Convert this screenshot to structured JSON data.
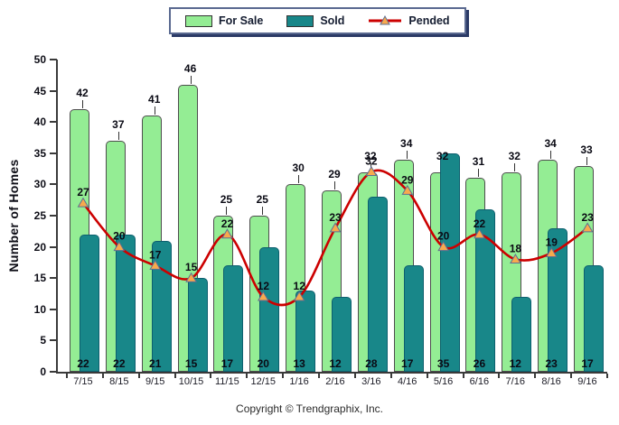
{
  "chart_data": {
    "type": "bar",
    "categories": [
      "7/15",
      "8/15",
      "9/15",
      "10/15",
      "11/15",
      "12/15",
      "1/16",
      "2/16",
      "3/16",
      "4/16",
      "5/16",
      "6/16",
      "7/16",
      "8/16",
      "9/16"
    ],
    "series": [
      {
        "name": "For Sale",
        "type": "bar",
        "color": "#94ed94",
        "values": [
          42,
          37,
          41,
          46,
          25,
          25,
          30,
          29,
          32,
          34,
          32,
          31,
          32,
          34,
          33
        ]
      },
      {
        "name": "Sold",
        "type": "bar",
        "color": "#188789",
        "values": [
          22,
          22,
          21,
          15,
          17,
          20,
          13,
          12,
          28,
          17,
          35,
          26,
          12,
          23,
          17
        ]
      },
      {
        "name": "Pended",
        "type": "line",
        "color": "#cc0000",
        "marker_color": "#f8a94d",
        "values": [
          27,
          20,
          17,
          15,
          22,
          12,
          12,
          23,
          32,
          29,
          20,
          22,
          18,
          19,
          23
        ]
      }
    ],
    "title": "",
    "xlabel": "",
    "ylabel": "Number of Homes",
    "ylim": [
      0,
      50
    ],
    "ytick_step": 5,
    "grid": false,
    "legend_position": "top"
  },
  "footer": {
    "copyright": "Copyright © Trendgraphix, Inc."
  }
}
